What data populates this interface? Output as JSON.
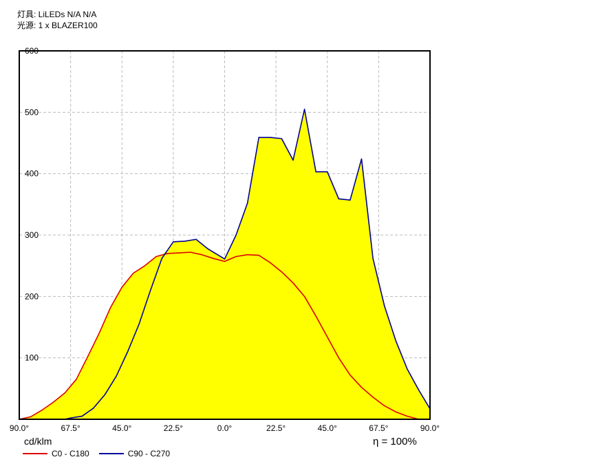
{
  "header": {
    "fixture_line": "灯具: LiLEDs N/A N/A",
    "source_line": "光源: 1 x BLAZER100"
  },
  "unit_label": "cd/klm",
  "efficiency_label": "η = 100%",
  "colors": {
    "fill": "#ffff00",
    "c0": "#dd0000",
    "c90": "#000099",
    "grid": "#bbbbbb",
    "frame": "#000000"
  },
  "chart_data": {
    "type": "line",
    "title": "",
    "xlabel": "",
    "ylabel": "cd/klm",
    "xlim": [
      -90,
      90
    ],
    "ylim": [
      0,
      600
    ],
    "x_ticks": [
      -90,
      -67.5,
      -45,
      -22.5,
      0,
      22.5,
      45,
      67.5,
      90
    ],
    "x_tick_labels": [
      "90.0°",
      "67.5°",
      "45.0°",
      "22.5°",
      "0.0°",
      "22.5°",
      "45.0°",
      "67.5°",
      "90.0°"
    ],
    "y_ticks": [
      100,
      200,
      300,
      400,
      500,
      600
    ],
    "y_tick_labels": [
      "100",
      "200",
      "300",
      "400",
      "500",
      "600"
    ],
    "grid": true,
    "legend_position": "bottom-left",
    "series": [
      {
        "name": "C0 - C180",
        "color": "#dd0000",
        "x": [
          -90,
          -85,
          -80,
          -75,
          -70,
          -65,
          -60,
          -55,
          -50,
          -45,
          -40,
          -35,
          -30,
          -25,
          -20,
          -15,
          -10,
          -5,
          0,
          5,
          10,
          15,
          20,
          25,
          30,
          35,
          40,
          45,
          50,
          55,
          60,
          65,
          70,
          75,
          80,
          85,
          90
        ],
        "values": [
          0,
          4,
          15,
          28,
          43,
          65,
          102,
          140,
          182,
          215,
          238,
          250,
          265,
          270,
          271,
          272,
          268,
          262,
          257,
          265,
          268,
          267,
          255,
          240,
          222,
          200,
          168,
          134,
          100,
          72,
          52,
          36,
          22,
          12,
          5,
          0,
          0
        ]
      },
      {
        "name": "C90 - C270",
        "color": "#000099",
        "x": [
          -90,
          -80,
          -70,
          -67.5,
          -62.5,
          -57.5,
          -52.5,
          -47.5,
          -42.5,
          -37.5,
          -32.5,
          -27.5,
          -22.5,
          -17.5,
          -12.5,
          -7.5,
          0,
          5,
          10,
          15,
          20,
          25,
          30,
          35,
          40,
          45,
          50,
          55,
          60,
          65,
          70,
          75,
          80,
          85,
          90
        ],
        "values": [
          0,
          0,
          0,
          2,
          5,
          18,
          40,
          70,
          110,
          155,
          210,
          262,
          289,
          290,
          293,
          278,
          261,
          300,
          352,
          459,
          459,
          457,
          422,
          505,
          403,
          403,
          359,
          357,
          424,
          262,
          185,
          128,
          82,
          48,
          17
        ]
      }
    ]
  }
}
